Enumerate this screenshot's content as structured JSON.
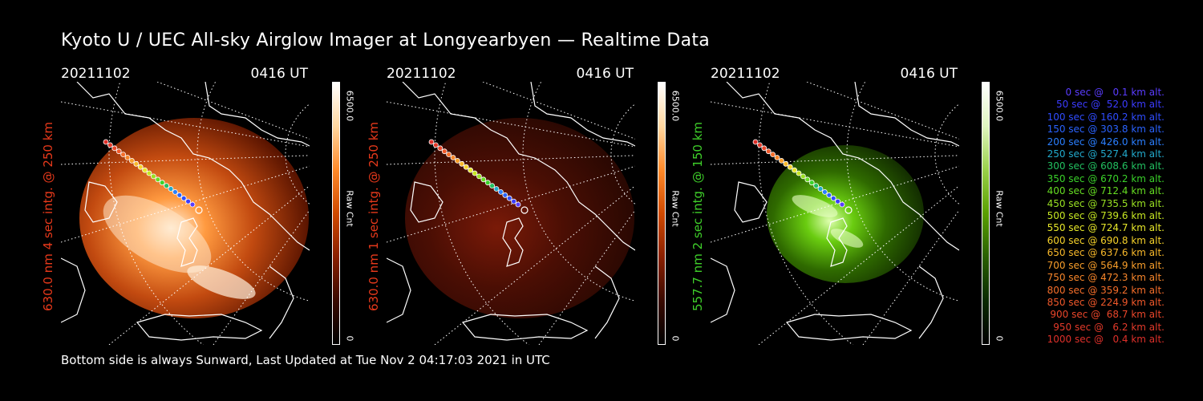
{
  "title": "Kyoto U / UEC All-sky Airglow Imager at Longyearbyen — Realtime Data",
  "footer": "Bottom side is always Sunward, Last Updated at Tue Nov  2 04:17:03 2021 in UTC",
  "panels": [
    {
      "date": "20211102",
      "time": "0416 UT",
      "ylabel": "630.0 nm 4 sec intg. @ 250 km",
      "label_color": "#e8391b",
      "colorbar_max": "6500.0",
      "colorbar_min": "0",
      "colorbar_label": "Raw Cnt",
      "cbar_gradient": [
        "#000000",
        "#3a0a00",
        "#8a2000",
        "#d04a00",
        "#ff8a2a",
        "#ffd7a0",
        "#ffffff"
      ],
      "glow": "bright"
    },
    {
      "date": "20211102",
      "time": "0416 UT",
      "ylabel": "630.0 nm 1 sec intg. @ 250 km",
      "label_color": "#e8391b",
      "colorbar_max": "6500.0",
      "colorbar_min": "0",
      "colorbar_label": "Raw Cnt",
      "cbar_gradient": [
        "#000000",
        "#3a0a00",
        "#8a2000",
        "#d04a00",
        "#ff8a2a",
        "#ffd7a0",
        "#ffffff"
      ],
      "glow": "dim"
    },
    {
      "date": "20211102",
      "time": "0416 UT",
      "ylabel": "557.7 nm 2 sec intg. @ 150 km",
      "label_color": "#3fcf2a",
      "colorbar_max": "6500.0",
      "colorbar_min": "0",
      "colorbar_label": "Raw Cnt",
      "cbar_gradient": [
        "#000000",
        "#0a2a00",
        "#2a6000",
        "#5aa000",
        "#9ad04a",
        "#e0f5c0",
        "#ffffff"
      ],
      "glow": "green"
    }
  ],
  "legend": [
    {
      "text": "0 sec @   0.1 km alt.",
      "color": "#5a3cff"
    },
    {
      "text": "50 sec @  52.0 km alt.",
      "color": "#3b3bff"
    },
    {
      "text": "100 sec @ 160.2 km alt.",
      "color": "#2f4cff"
    },
    {
      "text": "150 sec @ 303.8 km alt.",
      "color": "#2a63ff"
    },
    {
      "text": "200 sec @ 426.0 km alt.",
      "color": "#2a7fff"
    },
    {
      "text": "250 sec @ 527.4 km alt.",
      "color": "#22aacc"
    },
    {
      "text": "300 sec @ 608.6 km alt.",
      "color": "#22c060"
    },
    {
      "text": "350 sec @ 670.2 km alt.",
      "color": "#3ad22a"
    },
    {
      "text": "400 sec @ 712.4 km alt.",
      "color": "#66dd22"
    },
    {
      "text": "450 sec @ 735.5 km alt.",
      "color": "#99e022"
    },
    {
      "text": "500 sec @ 739.6 km alt.",
      "color": "#c6e622"
    },
    {
      "text": "550 sec @ 724.7 km alt.",
      "color": "#e8e82a"
    },
    {
      "text": "600 sec @ 690.8 km alt.",
      "color": "#f6d22a"
    },
    {
      "text": "650 sec @ 637.6 km alt.",
      "color": "#f8b82a"
    },
    {
      "text": "700 sec @ 564.9 km alt.",
      "color": "#f89e2a"
    },
    {
      "text": "750 sec @ 472.3 km alt.",
      "color": "#f8862a"
    },
    {
      "text": "800 sec @ 359.2 km alt.",
      "color": "#f56e2a"
    },
    {
      "text": "850 sec @ 224.9 km alt.",
      "color": "#f0582a"
    },
    {
      "text": "900 sec @  68.7 km alt.",
      "color": "#ea462a"
    },
    {
      "text": "950 sec @   6.2 km alt.",
      "color": "#e43a2a"
    },
    {
      "text": "1000 sec @   0.4 km alt.",
      "color": "#de302a"
    }
  ]
}
